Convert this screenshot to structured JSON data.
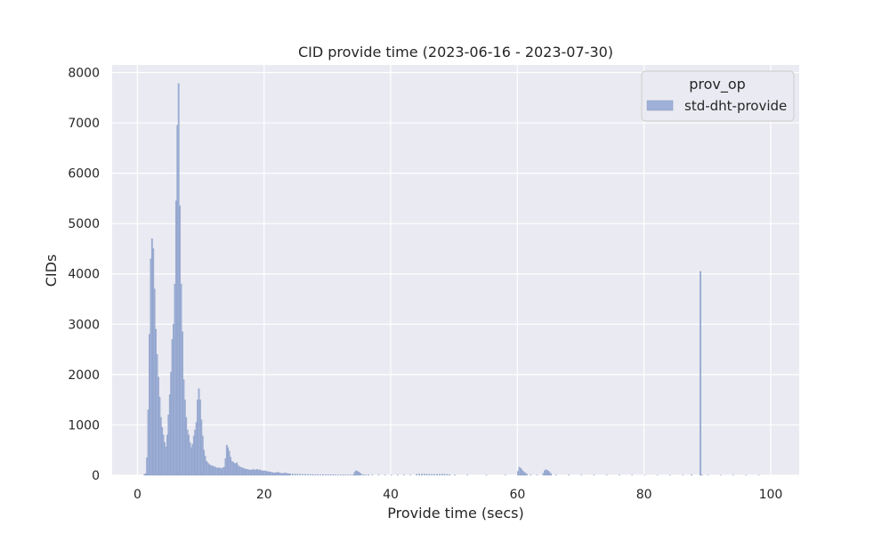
{
  "chart_data": {
    "type": "bar",
    "title": "CID provide time (2023-06-16 - 2023-07-30)",
    "xlabel": "Provide time (secs)",
    "ylabel": "CIDs",
    "xlim": [
      -4,
      104.5
    ],
    "ylim": [
      0,
      8150
    ],
    "xticks": [
      0,
      20,
      40,
      60,
      80,
      100
    ],
    "yticks": [
      0,
      1000,
      2000,
      3000,
      4000,
      5000,
      6000,
      7000,
      8000
    ],
    "grid": true,
    "legend": {
      "title": "prov_op",
      "placement": "top-right"
    },
    "bin_width": 0.2,
    "series": [
      {
        "name": "std-dht-provide",
        "color": "#9fb1d8",
        "edge_color": "#8799c2",
        "bins": [
          [
            1.0,
            20
          ],
          [
            1.2,
            30
          ],
          [
            1.4,
            350
          ],
          [
            1.6,
            1300
          ],
          [
            1.8,
            2800
          ],
          [
            2.0,
            4300
          ],
          [
            2.2,
            4700
          ],
          [
            2.4,
            4500
          ],
          [
            2.6,
            3700
          ],
          [
            2.8,
            2900
          ],
          [
            3.0,
            2400
          ],
          [
            3.2,
            1950
          ],
          [
            3.4,
            1550
          ],
          [
            3.6,
            1150
          ],
          [
            3.8,
            950
          ],
          [
            4.0,
            800
          ],
          [
            4.2,
            650
          ],
          [
            4.4,
            560
          ],
          [
            4.6,
            800
          ],
          [
            4.8,
            1200
          ],
          [
            5.0,
            1600
          ],
          [
            5.2,
            2050
          ],
          [
            5.4,
            2700
          ],
          [
            5.6,
            3000
          ],
          [
            5.8,
            3800
          ],
          [
            6.0,
            5450
          ],
          [
            6.2,
            6950
          ],
          [
            6.4,
            7780
          ],
          [
            6.6,
            5350
          ],
          [
            6.8,
            3800
          ],
          [
            7.0,
            2850
          ],
          [
            7.2,
            1900
          ],
          [
            7.4,
            1500
          ],
          [
            7.6,
            1150
          ],
          [
            7.8,
            900
          ],
          [
            8.0,
            800
          ],
          [
            8.2,
            650
          ],
          [
            8.4,
            550
          ],
          [
            8.6,
            620
          ],
          [
            8.8,
            780
          ],
          [
            9.0,
            900
          ],
          [
            9.2,
            1050
          ],
          [
            9.4,
            1500
          ],
          [
            9.6,
            1720
          ],
          [
            9.8,
            1500
          ],
          [
            10.0,
            1100
          ],
          [
            10.2,
            780
          ],
          [
            10.4,
            500
          ],
          [
            10.6,
            380
          ],
          [
            10.8,
            280
          ],
          [
            11.0,
            250
          ],
          [
            11.2,
            220
          ],
          [
            11.4,
            200
          ],
          [
            11.6,
            190
          ],
          [
            11.8,
            180
          ],
          [
            12.0,
            175
          ],
          [
            12.2,
            160
          ],
          [
            12.4,
            150
          ],
          [
            12.6,
            140
          ],
          [
            12.8,
            150
          ],
          [
            13.0,
            140
          ],
          [
            13.2,
            130
          ],
          [
            13.4,
            150
          ],
          [
            13.6,
            160
          ],
          [
            13.8,
            330
          ],
          [
            14.0,
            600
          ],
          [
            14.2,
            550
          ],
          [
            14.4,
            480
          ],
          [
            14.6,
            360
          ],
          [
            14.8,
            280
          ],
          [
            15.0,
            260
          ],
          [
            15.2,
            240
          ],
          [
            15.4,
            230
          ],
          [
            15.6,
            250
          ],
          [
            15.8,
            200
          ],
          [
            16.0,
            170
          ],
          [
            16.2,
            160
          ],
          [
            16.4,
            150
          ],
          [
            16.6,
            140
          ],
          [
            16.8,
            130
          ],
          [
            17.0,
            120
          ],
          [
            17.2,
            120
          ],
          [
            17.4,
            110
          ],
          [
            17.6,
            105
          ],
          [
            17.8,
            100
          ],
          [
            18.0,
            110
          ],
          [
            18.2,
            115
          ],
          [
            18.4,
            110
          ],
          [
            18.6,
            105
          ],
          [
            18.8,
            120
          ],
          [
            19.0,
            100
          ],
          [
            19.2,
            110
          ],
          [
            19.4,
            95
          ],
          [
            19.6,
            90
          ],
          [
            19.8,
            85
          ],
          [
            20.0,
            90
          ],
          [
            20.2,
            80
          ],
          [
            20.4,
            75
          ],
          [
            20.6,
            70
          ],
          [
            20.8,
            65
          ],
          [
            21.0,
            60
          ],
          [
            21.2,
            55
          ],
          [
            21.4,
            50
          ],
          [
            21.6,
            45
          ],
          [
            21.8,
            50
          ],
          [
            22.0,
            60
          ],
          [
            22.2,
            55
          ],
          [
            22.4,
            45
          ],
          [
            22.6,
            40
          ],
          [
            22.8,
            35
          ],
          [
            23.0,
            40
          ],
          [
            23.2,
            45
          ],
          [
            23.4,
            40
          ],
          [
            23.6,
            35
          ],
          [
            23.8,
            30
          ],
          [
            24.0,
            30
          ],
          [
            24.4,
            28
          ],
          [
            24.8,
            25
          ],
          [
            25.2,
            25
          ],
          [
            25.6,
            22
          ],
          [
            26.0,
            20
          ],
          [
            26.4,
            20
          ],
          [
            26.8,
            18
          ],
          [
            27.2,
            18
          ],
          [
            27.6,
            18
          ],
          [
            28.0,
            15
          ],
          [
            28.4,
            15
          ],
          [
            28.8,
            15
          ],
          [
            29.2,
            15
          ],
          [
            29.6,
            12
          ],
          [
            30.0,
            12
          ],
          [
            30.4,
            12
          ],
          [
            30.8,
            12
          ],
          [
            31.2,
            12
          ],
          [
            31.6,
            10
          ],
          [
            32.0,
            10
          ],
          [
            32.4,
            10
          ],
          [
            32.8,
            10
          ],
          [
            33.2,
            10
          ],
          [
            33.6,
            10
          ],
          [
            34.0,
            15
          ],
          [
            34.2,
            60
          ],
          [
            34.4,
            90
          ],
          [
            34.6,
            80
          ],
          [
            34.8,
            70
          ],
          [
            35.0,
            50
          ],
          [
            35.2,
            30
          ],
          [
            35.6,
            15
          ],
          [
            36.0,
            10
          ],
          [
            36.4,
            10
          ],
          [
            37.0,
            8
          ],
          [
            38.0,
            8
          ],
          [
            39.0,
            6
          ],
          [
            40.0,
            6
          ],
          [
            41.0,
            6
          ],
          [
            42.0,
            6
          ],
          [
            43.0,
            5
          ],
          [
            44.0,
            20
          ],
          [
            44.4,
            25
          ],
          [
            44.8,
            25
          ],
          [
            45.2,
            25
          ],
          [
            45.6,
            22
          ],
          [
            46.0,
            20
          ],
          [
            46.4,
            20
          ],
          [
            46.8,
            20
          ],
          [
            47.2,
            20
          ],
          [
            47.6,
            22
          ],
          [
            48.0,
            25
          ],
          [
            48.4,
            22
          ],
          [
            48.8,
            18
          ],
          [
            49.2,
            15
          ],
          [
            50.0,
            5
          ],
          [
            52.0,
            5
          ],
          [
            55.0,
            5
          ],
          [
            58.0,
            5
          ],
          [
            60.0,
            80
          ],
          [
            60.2,
            160
          ],
          [
            60.4,
            140
          ],
          [
            60.6,
            110
          ],
          [
            60.8,
            80
          ],
          [
            61.0,
            60
          ],
          [
            61.2,
            40
          ],
          [
            61.4,
            20
          ],
          [
            62.0,
            8
          ],
          [
            63.0,
            5
          ],
          [
            64.0,
            40
          ],
          [
            64.2,
            90
          ],
          [
            64.4,
            110
          ],
          [
            64.6,
            100
          ],
          [
            64.8,
            80
          ],
          [
            65.0,
            60
          ],
          [
            65.2,
            30
          ],
          [
            66.0,
            6
          ],
          [
            68.0,
            5
          ],
          [
            70.0,
            5
          ],
          [
            72.0,
            4
          ],
          [
            74.0,
            4
          ],
          [
            76.0,
            4
          ],
          [
            78.0,
            3
          ],
          [
            80.0,
            3
          ],
          [
            82.0,
            3
          ],
          [
            84.0,
            3
          ],
          [
            86.0,
            3
          ],
          [
            87.4,
            10
          ],
          [
            88.8,
            4050
          ],
          [
            89.0,
            10
          ],
          [
            90.0,
            3
          ],
          [
            92.0,
            3
          ],
          [
            94.0,
            3
          ],
          [
            96.0,
            3
          ],
          [
            98.0,
            3
          ]
        ]
      }
    ]
  }
}
